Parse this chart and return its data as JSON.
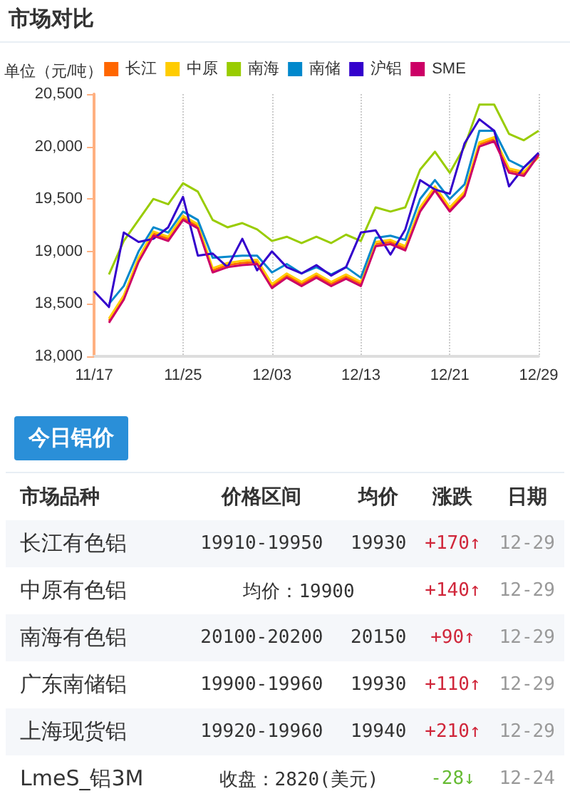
{
  "chart_data": [
    {
      "type": "line",
      "title": "市场对比",
      "ylabel": "单位（元/吨）",
      "categories": [
        "11/17",
        null,
        null,
        null,
        null,
        null,
        "11/25",
        null,
        null,
        null,
        null,
        null,
        "12/03",
        null,
        null,
        null,
        null,
        null,
        "12/13",
        null,
        null,
        null,
        null,
        null,
        "12/21",
        null,
        null,
        null,
        null,
        null,
        "12/29"
      ],
      "series": [
        {
          "name": "长江",
          "color": "#ff6600",
          "values": [
            null,
            18340,
            18560,
            18920,
            19170,
            19120,
            19320,
            19240,
            18820,
            18870,
            18890,
            18900,
            18670,
            18770,
            18690,
            18770,
            18690,
            18760,
            18690,
            19070,
            19090,
            19030,
            19400,
            19600,
            19400,
            19550,
            20020,
            20070,
            19770,
            19740,
            19930
          ]
        },
        {
          "name": "中原",
          "color": "#ffcc00",
          "values": [
            null,
            18360,
            18580,
            18940,
            19190,
            19140,
            19340,
            19260,
            18840,
            18890,
            18910,
            18920,
            18690,
            18790,
            18710,
            18790,
            18710,
            18780,
            18710,
            19090,
            19110,
            19050,
            19420,
            19620,
            19420,
            19570,
            20040,
            20090,
            19790,
            19760,
            19900
          ]
        },
        {
          "name": "南海",
          "color": "#99cc00",
          "values": [
            null,
            18780,
            19100,
            19300,
            19500,
            19450,
            19650,
            19570,
            19300,
            19230,
            19270,
            19210,
            19100,
            19140,
            19080,
            19140,
            19080,
            19160,
            19100,
            19420,
            19380,
            19420,
            19780,
            19950,
            19750,
            20000,
            20400,
            20400,
            20120,
            20060,
            20150
          ]
        },
        {
          "name": "南储",
          "color": "#0088cc",
          "values": [
            null,
            18500,
            18670,
            19000,
            19230,
            19180,
            19380,
            19300,
            18940,
            18950,
            18960,
            18960,
            18800,
            18880,
            18790,
            18850,
            18780,
            18850,
            18750,
            19130,
            19150,
            19110,
            19500,
            19680,
            19500,
            19640,
            20150,
            20150,
            19870,
            19800,
            19930
          ]
        },
        {
          "name": "沪铝",
          "color": "#3300cc",
          "values": [
            18620,
            18470,
            19180,
            19090,
            19120,
            19230,
            19520,
            18960,
            18980,
            18850,
            19120,
            18820,
            19000,
            18850,
            18790,
            18870,
            18770,
            18850,
            19180,
            19200,
            18970,
            19210,
            19680,
            19590,
            19550,
            20030,
            20260,
            20150,
            19620,
            19800,
            19940
          ]
        },
        {
          "name": "SME",
          "color": "#cc0066",
          "values": [
            null,
            18320,
            18540,
            18900,
            19150,
            19100,
            19300,
            19220,
            18800,
            18850,
            18870,
            18880,
            18650,
            18750,
            18670,
            18750,
            18670,
            18740,
            18670,
            19050,
            19070,
            19010,
            19380,
            19580,
            19380,
            19530,
            20000,
            20050,
            19750,
            19720,
            19920
          ]
        }
      ],
      "ylim": [
        18000,
        20500
      ],
      "yticks": [
        {
          "value": 18000,
          "label": "18,000"
        },
        {
          "value": 18500,
          "label": "18,500"
        },
        {
          "value": 19000,
          "label": "19,000"
        },
        {
          "value": 19500,
          "label": "19,500"
        },
        {
          "value": 20000,
          "label": "20,000"
        },
        {
          "value": 20500,
          "label": "20,500"
        }
      ],
      "grid": "x",
      "legend": "top",
      "marker": "none",
      "line_style": "solid"
    },
    {
      "type": "other",
      "title": "今日铝价",
      "categories": [
        "市场品种",
        "价格区间",
        "均价",
        "涨跌",
        "日期"
      ],
      "y_categories": [
        "长江有色铝",
        "中原有色铝",
        "南海有色铝",
        "广东南储铝",
        "上海现货铝",
        "LmeS_铝3M"
      ],
      "cell_labels": [
        [
          "19910-19950",
          "19930",
          "+170↑",
          "12-29"
        ],
        [
          "均价：19900",
          null,
          "+140↑",
          "12-29"
        ],
        [
          "20100-20200",
          "20150",
          "+90↑",
          "12-29"
        ],
        [
          "19900-19960",
          "19930",
          "+110↑",
          "12-29"
        ],
        [
          "19920-19960",
          "19940",
          "+210↑",
          "12-29"
        ],
        [
          "收盘：2820(美元)",
          null,
          "-28↓",
          "12-24"
        ]
      ]
    }
  ]
}
